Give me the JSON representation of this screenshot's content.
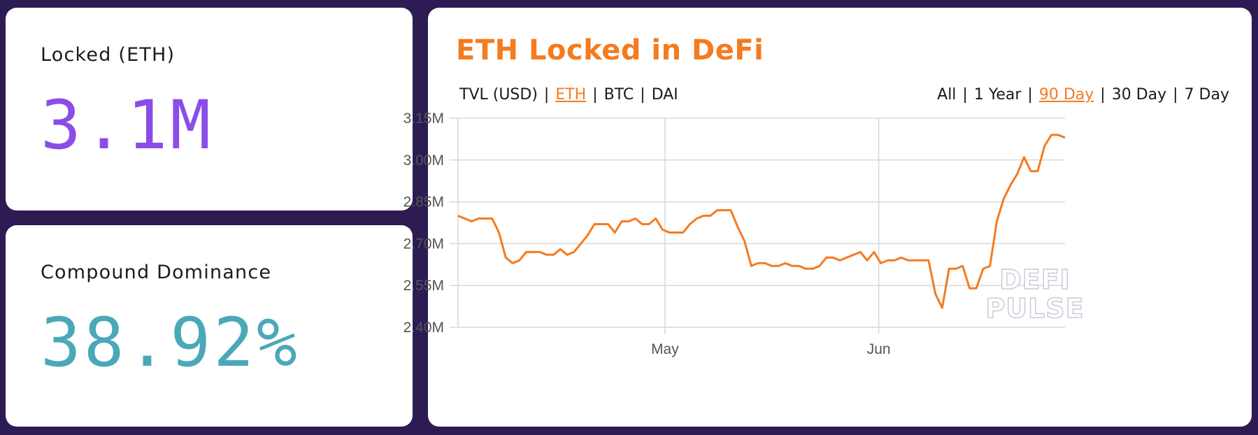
{
  "cards": {
    "locked": {
      "label": "Locked (ETH)",
      "value": "3.1M",
      "color": "#8a4de8"
    },
    "dominance": {
      "label": "Compound Dominance",
      "value": "38.92%",
      "color": "#4aa8b8"
    }
  },
  "chart_panel": {
    "title": "ETH Locked in DeFi",
    "metric_tabs": [
      {
        "label": "TVL (USD)",
        "active": false
      },
      {
        "label": "ETH",
        "active": true
      },
      {
        "label": "BTC",
        "active": false
      },
      {
        "label": "DAI",
        "active": false
      }
    ],
    "range_tabs": [
      {
        "label": "All",
        "active": false
      },
      {
        "label": "1 Year",
        "active": false
      },
      {
        "label": "90 Day",
        "active": true
      },
      {
        "label": "30 Day",
        "active": false
      },
      {
        "label": "7 Day",
        "active": false
      }
    ],
    "watermark": [
      "DEFI",
      "PULSE"
    ],
    "accent_color": "#f47b20"
  },
  "chart_data": {
    "type": "line",
    "title": "ETH Locked in DeFi",
    "xlabel": "",
    "ylabel": "",
    "ylim": [
      2.4,
      3.15
    ],
    "yticks": [
      2.4,
      2.55,
      2.7,
      2.85,
      3.0,
      3.15
    ],
    "ytick_labels": [
      "2.40M",
      "2.55M",
      "2.70M",
      "2.85M",
      "3.00M",
      "3.15M"
    ],
    "xlim": [
      0,
      88
    ],
    "xticks": [
      30,
      61
    ],
    "xtick_labels": [
      "May",
      "Jun"
    ],
    "grid": true,
    "series": [
      {
        "color": "#f47b20",
        "values": [
          2.8,
          2.79,
          2.78,
          2.79,
          2.79,
          2.79,
          2.74,
          2.65,
          2.63,
          2.64,
          2.67,
          2.67,
          2.67,
          2.66,
          2.66,
          2.68,
          2.66,
          2.67,
          2.7,
          2.73,
          2.77,
          2.77,
          2.77,
          2.74,
          2.78,
          2.78,
          2.79,
          2.77,
          2.77,
          2.79,
          2.75,
          2.74,
          2.74,
          2.74,
          2.77,
          2.79,
          2.8,
          2.8,
          2.82,
          2.82,
          2.82,
          2.76,
          2.71,
          2.62,
          2.63,
          2.63,
          2.62,
          2.62,
          2.63,
          2.62,
          2.62,
          2.61,
          2.61,
          2.62,
          2.65,
          2.65,
          2.64,
          2.65,
          2.66,
          2.67,
          2.64,
          2.67,
          2.63,
          2.64,
          2.64,
          2.65,
          2.64,
          2.64,
          2.64,
          2.64,
          2.52,
          2.47,
          2.61,
          2.61,
          2.62,
          2.54,
          2.54,
          2.61,
          2.62,
          2.78,
          2.86,
          2.91,
          2.95,
          3.01,
          2.96,
          2.96,
          3.05,
          3.09,
          3.09,
          3.08
        ]
      }
    ]
  }
}
